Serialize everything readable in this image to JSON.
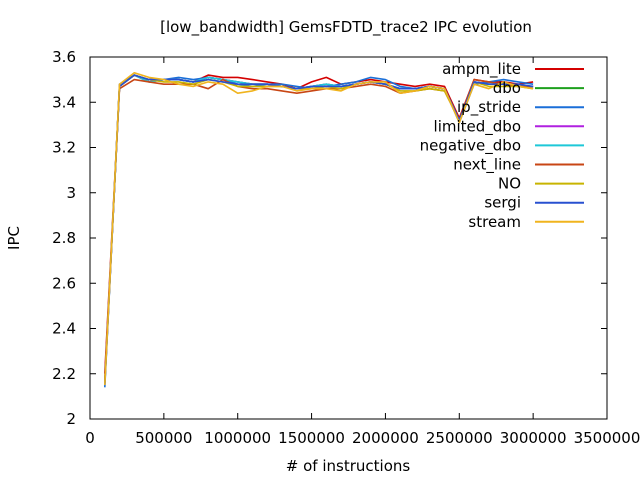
{
  "chart_data": {
    "type": "line",
    "title": "[low_bandwidth] GemsFDTD_trace2 IPC evolution",
    "xlabel": "# of instructions",
    "ylabel": "IPC",
    "xlim": [
      0,
      3500000
    ],
    "ylim": [
      2,
      3.6
    ],
    "xticks": [
      0,
      500000,
      1000000,
      1500000,
      2000000,
      2500000,
      3000000,
      3500000
    ],
    "xtick_labels": [
      "0",
      "500000",
      "1000000",
      "1500000",
      "2000000",
      "2500000",
      "3000000",
      "3500000"
    ],
    "yticks": [
      2,
      2.2,
      2.4,
      2.6,
      2.8,
      3,
      3.2,
      3.4,
      3.6
    ],
    "ytick_labels": [
      "2",
      "2.2",
      "2.4",
      "2.6",
      "2.8",
      "3",
      "3.2",
      "3.4",
      "3.6"
    ],
    "grid": false,
    "legend_position": "top-right",
    "x": [
      100000,
      200000,
      300000,
      400000,
      500000,
      600000,
      700000,
      800000,
      900000,
      1000000,
      1100000,
      1200000,
      1300000,
      1400000,
      1500000,
      1600000,
      1700000,
      1800000,
      1900000,
      2000000,
      2100000,
      2200000,
      2300000,
      2400000,
      2500000,
      2600000,
      2700000,
      2800000,
      2900000,
      3000000
    ],
    "series": [
      {
        "name": "ampm_lite",
        "color": "#d40000",
        "values": [
          2.2,
          3.47,
          3.52,
          3.5,
          3.5,
          3.5,
          3.49,
          3.52,
          3.51,
          3.51,
          3.5,
          3.49,
          3.48,
          3.46,
          3.49,
          3.51,
          3.48,
          3.49,
          3.5,
          3.49,
          3.48,
          3.47,
          3.48,
          3.47,
          3.33,
          3.5,
          3.49,
          3.49,
          3.48,
          3.49
        ]
      },
      {
        "name": "dbo",
        "color": "#1ea01e",
        "values": [
          2.16,
          3.47,
          3.52,
          3.49,
          3.5,
          3.5,
          3.49,
          3.51,
          3.5,
          3.49,
          3.48,
          3.48,
          3.47,
          3.46,
          3.47,
          3.48,
          3.47,
          3.48,
          3.49,
          3.48,
          3.46,
          3.46,
          3.47,
          3.46,
          3.32,
          3.49,
          3.48,
          3.48,
          3.47,
          3.47
        ]
      },
      {
        "name": "ip_stride",
        "color": "#1a6fd8",
        "values": [
          2.14,
          3.48,
          3.52,
          3.5,
          3.5,
          3.51,
          3.5,
          3.51,
          3.5,
          3.48,
          3.47,
          3.48,
          3.48,
          3.47,
          3.46,
          3.47,
          3.48,
          3.49,
          3.51,
          3.5,
          3.47,
          3.46,
          3.47,
          3.46,
          3.31,
          3.48,
          3.49,
          3.5,
          3.49,
          3.48
        ]
      },
      {
        "name": "limited_dbo",
        "color": "#b020e0",
        "values": [
          2.16,
          3.47,
          3.52,
          3.49,
          3.5,
          3.5,
          3.49,
          3.51,
          3.5,
          3.49,
          3.48,
          3.48,
          3.47,
          3.46,
          3.47,
          3.48,
          3.47,
          3.48,
          3.49,
          3.48,
          3.46,
          3.46,
          3.47,
          3.46,
          3.32,
          3.49,
          3.48,
          3.48,
          3.47,
          3.47
        ]
      },
      {
        "name": "negative_dbo",
        "color": "#1ec8d8",
        "values": [
          2.16,
          3.47,
          3.52,
          3.49,
          3.5,
          3.5,
          3.49,
          3.51,
          3.5,
          3.49,
          3.48,
          3.48,
          3.47,
          3.46,
          3.47,
          3.48,
          3.47,
          3.48,
          3.49,
          3.48,
          3.46,
          3.46,
          3.47,
          3.46,
          3.32,
          3.49,
          3.48,
          3.48,
          3.47,
          3.47
        ]
      },
      {
        "name": "next_line",
        "color": "#c84614",
        "values": [
          2.17,
          3.46,
          3.5,
          3.49,
          3.48,
          3.48,
          3.48,
          3.46,
          3.5,
          3.47,
          3.46,
          3.46,
          3.45,
          3.44,
          3.45,
          3.46,
          3.46,
          3.47,
          3.48,
          3.47,
          3.44,
          3.45,
          3.46,
          3.45,
          3.32,
          3.5,
          3.49,
          3.48,
          3.47,
          3.47
        ]
      },
      {
        "name": "NO",
        "color": "#c8b400",
        "values": [
          2.16,
          3.47,
          3.52,
          3.5,
          3.49,
          3.49,
          3.48,
          3.5,
          3.49,
          3.47,
          3.47,
          3.47,
          3.47,
          3.46,
          3.46,
          3.47,
          3.46,
          3.48,
          3.49,
          3.48,
          3.45,
          3.45,
          3.46,
          3.45,
          3.32,
          3.49,
          3.47,
          3.47,
          3.47,
          3.46
        ]
      },
      {
        "name": "sergi",
        "color": "#2850d0",
        "values": [
          2.15,
          3.47,
          3.52,
          3.5,
          3.5,
          3.5,
          3.49,
          3.5,
          3.49,
          3.48,
          3.48,
          3.48,
          3.47,
          3.46,
          3.47,
          3.47,
          3.47,
          3.48,
          3.49,
          3.48,
          3.46,
          3.46,
          3.47,
          3.46,
          3.32,
          3.49,
          3.48,
          3.48,
          3.48,
          3.47
        ]
      },
      {
        "name": "stream",
        "color": "#f0b41e",
        "values": [
          2.15,
          3.48,
          3.53,
          3.51,
          3.5,
          3.48,
          3.47,
          3.49,
          3.48,
          3.44,
          3.45,
          3.47,
          3.47,
          3.45,
          3.46,
          3.46,
          3.45,
          3.48,
          3.49,
          3.49,
          3.44,
          3.45,
          3.47,
          3.46,
          3.31,
          3.48,
          3.46,
          3.49,
          3.47,
          3.46
        ]
      }
    ]
  }
}
